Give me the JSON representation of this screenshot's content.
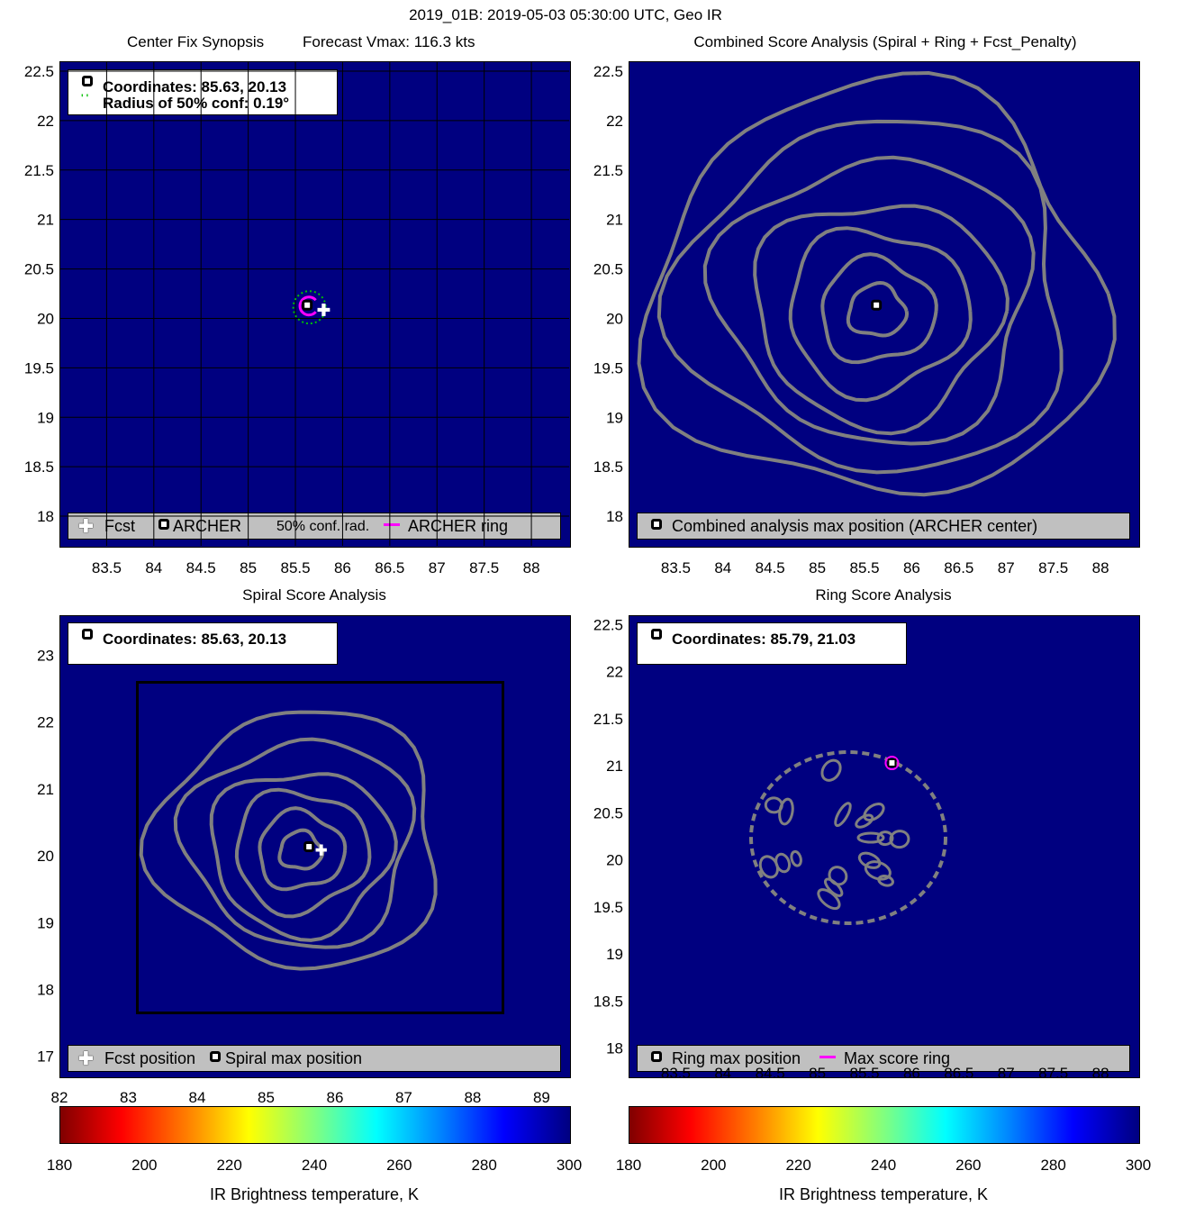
{
  "figure_title": "2019_01B: 2019-05-03 05:30:00 UTC, Geo IR",
  "panels": {
    "synopsis": {
      "title_left": "Center Fix Synopsis",
      "title_right": "Forecast Vmax: 116.3 kts",
      "info_line1": "Coordinates: 85.63, 20.13",
      "info_line2": "Radius of 50% conf: 0.19°",
      "legend": [
        "Fcst",
        "ARCHER",
        "50% conf. rad.",
        "ARCHER ring"
      ]
    },
    "combined": {
      "title": "Combined Score Analysis (Spiral + Ring + Fcst_Penalty)",
      "legend": [
        "Combined analysis max position (ARCHER center)"
      ]
    },
    "spiral": {
      "title": "Spiral Score Analysis",
      "info_line1": "Coordinates: 85.63, 20.13",
      "legend": [
        "Fcst position",
        "Spiral max position"
      ]
    },
    "ring": {
      "title": "Ring Score Analysis",
      "info_line1": "Coordinates: 85.79, 21.03",
      "legend": [
        "Ring max position",
        "Max score ring"
      ]
    }
  },
  "colorbar": {
    "label": "IR Brightness temperature, K",
    "ticks": [
      "180",
      "200",
      "220",
      "240",
      "260",
      "280",
      "300"
    ],
    "colors": [
      "#800000",
      "#ff0000",
      "#ff8000",
      "#ffff00",
      "#80ff80",
      "#00ffff",
      "#0080ff",
      "#0000ff",
      "#000080"
    ]
  },
  "colors": {
    "plot_background": "#000080",
    "contour": "#808080",
    "archer_ring": "#ff00ff",
    "confidence_circle": "#00c000",
    "legend_background": "#c0c0c0"
  },
  "chart_data": [
    {
      "type": "contour",
      "panel": "Center Fix Synopsis",
      "xticks": [
        "83.5",
        "84",
        "84.5",
        "85",
        "85.5",
        "86",
        "86.5",
        "87",
        "87.5",
        "88"
      ],
      "yticks": [
        "18",
        "18.5",
        "19",
        "19.5",
        "20",
        "20.5",
        "21",
        "21.5",
        "22",
        "22.5"
      ],
      "xlim": [
        83.0,
        88.4
      ],
      "ylim": [
        17.7,
        22.6
      ],
      "archer_center": [
        85.63,
        20.13
      ],
      "forecast_position": [
        85.8,
        20.1
      ],
      "confidence_radius_deg": 0.19,
      "forecast_vmax_kts": 116.3
    },
    {
      "type": "contour",
      "panel": "Combined Score Analysis",
      "xticks": [
        "83.5",
        "84",
        "84.5",
        "85",
        "85.5",
        "86",
        "86.5",
        "87",
        "87.5",
        "88"
      ],
      "yticks": [
        "18",
        "18.5",
        "19",
        "19.5",
        "20",
        "20.5",
        "21",
        "21.5",
        "22",
        "22.5"
      ],
      "xlim": [
        83.0,
        88.4
      ],
      "ylim": [
        17.7,
        22.6
      ],
      "max_position": [
        85.63,
        20.13
      ]
    },
    {
      "type": "contour",
      "panel": "Spiral Score Analysis",
      "xticks": [
        "82",
        "83",
        "84",
        "85",
        "86",
        "87",
        "88",
        "89"
      ],
      "yticks": [
        "17",
        "18",
        "19",
        "20",
        "21",
        "22",
        "23"
      ],
      "xlim": [
        82.0,
        89.4
      ],
      "ylim": [
        16.7,
        23.6
      ],
      "max_position": [
        85.63,
        20.13
      ],
      "forecast_position": [
        85.8,
        20.1
      ]
    },
    {
      "type": "contour",
      "panel": "Ring Score Analysis",
      "xticks": [
        "83.5",
        "84",
        "84.5",
        "85",
        "85.5",
        "86",
        "86.5",
        "87",
        "87.5",
        "88"
      ],
      "yticks": [
        "18",
        "18.5",
        "19",
        "19.5",
        "20",
        "20.5",
        "21",
        "21.5",
        "22",
        "22.5"
      ],
      "xlim": [
        83.0,
        88.4
      ],
      "ylim": [
        17.7,
        22.6
      ],
      "max_position": [
        85.79,
        21.03
      ]
    }
  ]
}
